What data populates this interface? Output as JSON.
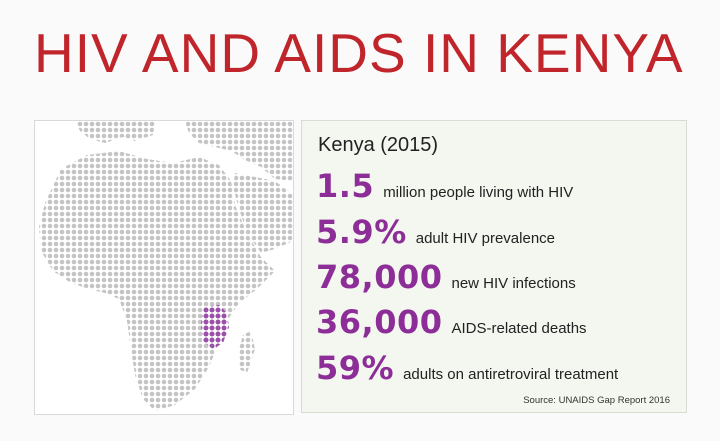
{
  "title": "HIV AND AIDS IN KENYA",
  "colors": {
    "title": "#c0252b",
    "accent": "#8d2e98",
    "map_dot": "#c4c4c4",
    "highlight": "#9b4fa8"
  },
  "map": {
    "highlight_icon": "kenya-highlight"
  },
  "stats": {
    "country": "Kenya (2015)",
    "items": [
      {
        "value": "1.5",
        "label": "million people living with HIV"
      },
      {
        "value": "5.9%",
        "label": "adult HIV prevalence"
      },
      {
        "value": "78,000",
        "label": "new HIV infections"
      },
      {
        "value": "36,000",
        "label": "AIDS-related deaths"
      },
      {
        "value": "59%",
        "label": "adults on antiretroviral treatment"
      }
    ],
    "source": "Source: UNAIDS Gap Report 2016"
  }
}
